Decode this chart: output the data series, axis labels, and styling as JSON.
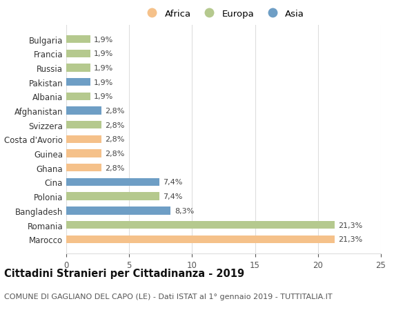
{
  "categories": [
    "Bulgaria",
    "Francia",
    "Russia",
    "Pakistan",
    "Albania",
    "Afghanistan",
    "Svizzera",
    "Costa d'Avorio",
    "Guinea",
    "Ghana",
    "Cina",
    "Polonia",
    "Bangladesh",
    "Romania",
    "Marocco"
  ],
  "values": [
    1.9,
    1.9,
    1.9,
    1.9,
    1.9,
    2.8,
    2.8,
    2.8,
    2.8,
    2.8,
    7.4,
    7.4,
    8.3,
    21.3,
    21.3
  ],
  "continents": [
    "Europa",
    "Europa",
    "Europa",
    "Asia",
    "Europa",
    "Asia",
    "Europa",
    "Africa",
    "Africa",
    "Africa",
    "Asia",
    "Europa",
    "Asia",
    "Europa",
    "Africa"
  ],
  "colors": {
    "Africa": "#F5C18A",
    "Europa": "#B5C98E",
    "Asia": "#6E9EC5"
  },
  "label_texts": [
    "1,9%",
    "1,9%",
    "1,9%",
    "1,9%",
    "1,9%",
    "2,8%",
    "2,8%",
    "2,8%",
    "2,8%",
    "2,8%",
    "7,4%",
    "7,4%",
    "8,3%",
    "21,3%",
    "21,3%"
  ],
  "xlim": [
    0,
    25
  ],
  "xticks": [
    0,
    5,
    10,
    15,
    20,
    25
  ],
  "title": "Cittadini Stranieri per Cittadinanza - 2019",
  "subtitle": "COMUNE DI GAGLIANO DEL CAPO (LE) - Dati ISTAT al 1° gennaio 2019 - TUTTITALIA.IT",
  "legend_order": [
    "Africa",
    "Europa",
    "Asia"
  ],
  "background_color": "#ffffff",
  "grid_color": "#dddddd",
  "title_fontsize": 10.5,
  "subtitle_fontsize": 8,
  "label_fontsize": 8,
  "ytick_fontsize": 8.5,
  "xtick_fontsize": 8.5,
  "bar_height": 0.55
}
